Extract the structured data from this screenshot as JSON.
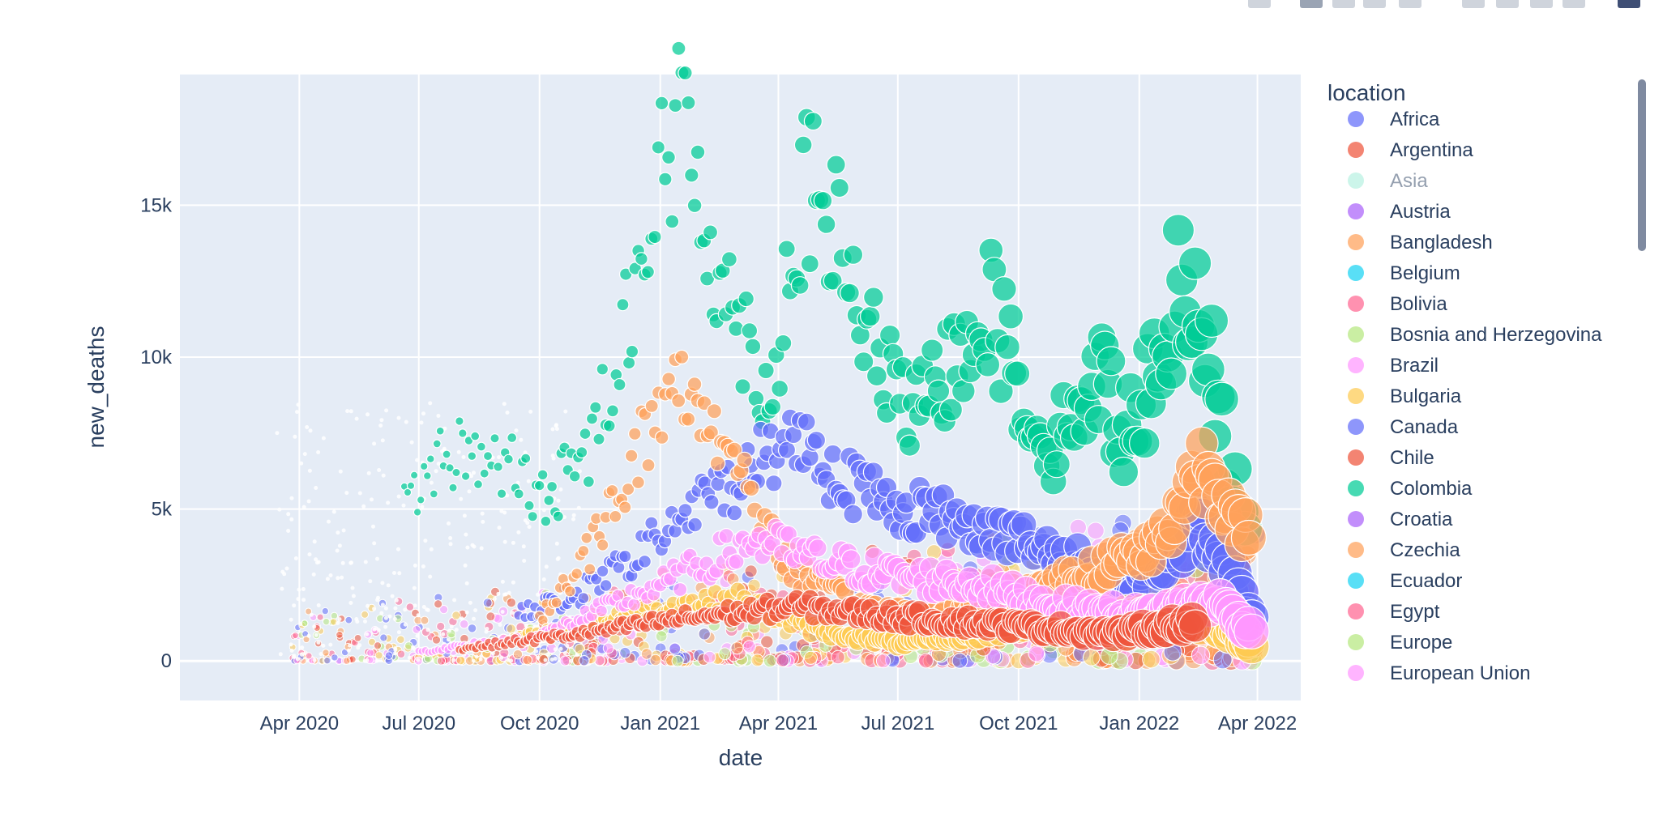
{
  "modebar": {
    "buttons": [
      "camera-icon",
      "zoom-icon",
      "pan-icon",
      "box-select-icon",
      "lasso-select-icon",
      "zoom-in-icon",
      "zoom-out-icon",
      "autoscale-icon",
      "reset-axes-icon",
      "plotly-logo-icon"
    ]
  },
  "chart_data": {
    "type": "scatter",
    "xlabel": "date",
    "ylabel": "new_deaths",
    "legend_title": "location",
    "x_ticks": [
      "Apr 2020",
      "Jul 2020",
      "Oct 2020",
      "Jan 2021",
      "Apr 2021",
      "Jul 2021",
      "Oct 2021",
      "Jan 2022",
      "Apr 2022"
    ],
    "y_ticks": [
      "0",
      "5k",
      "10k",
      "15k"
    ],
    "xlim": [
      "2020-01-01",
      "2022-05-04"
    ],
    "ylim": [
      -1300,
      19300
    ],
    "grid": true,
    "legend_placement": "right",
    "background": "#e5ecf6",
    "series": [
      {
        "name": "Africa",
        "color": "#636efa"
      },
      {
        "name": "Argentina",
        "color": "#EF553B"
      },
      {
        "name": "Asia",
        "color": "#00cc96",
        "hidden": true
      },
      {
        "name": "Austria",
        "color": "#ab63fa"
      },
      {
        "name": "Bangladesh",
        "color": "#FFA15A"
      },
      {
        "name": "Belgium",
        "color": "#19d3f3"
      },
      {
        "name": "Bolivia",
        "color": "#FF6692"
      },
      {
        "name": "Bosnia and Herzegovina",
        "color": "#B6E880"
      },
      {
        "name": "Brazil",
        "color": "#FF97FF"
      },
      {
        "name": "Bulgaria",
        "color": "#FECB52"
      },
      {
        "name": "Canada",
        "color": "#636efa"
      },
      {
        "name": "Chile",
        "color": "#EF553B"
      },
      {
        "name": "Colombia",
        "color": "#00cc96"
      },
      {
        "name": "Croatia",
        "color": "#ab63fa"
      },
      {
        "name": "Czechia",
        "color": "#FFA15A"
      },
      {
        "name": "Ecuador",
        "color": "#19d3f3"
      },
      {
        "name": "Egypt",
        "color": "#FF6692"
      },
      {
        "name": "Europe",
        "color": "#B6E880"
      },
      {
        "name": "European Union",
        "color": "#FF97FF"
      }
    ],
    "highlight_series": [
      {
        "name": "Colombia",
        "color": "#00cc96",
        "points": [
          [
            "2020-06-20",
            5400
          ],
          [
            "2020-07-10",
            6300
          ],
          [
            "2020-08-01",
            7000
          ],
          [
            "2020-08-20",
            6700
          ],
          [
            "2020-09-10",
            6300
          ],
          [
            "2020-10-01",
            5200
          ],
          [
            "2020-10-20",
            6000
          ],
          [
            "2020-11-10",
            7200
          ],
          [
            "2020-12-01",
            10500
          ],
          [
            "2020-12-20",
            14000
          ],
          [
            "2021-01-10",
            16800
          ],
          [
            "2021-01-20",
            18100
          ],
          [
            "2021-02-01",
            15200
          ],
          [
            "2021-02-20",
            12000
          ],
          [
            "2021-03-10",
            10500
          ],
          [
            "2021-03-25",
            8500
          ],
          [
            "2021-04-10",
            12800
          ],
          [
            "2021-04-20",
            15400
          ],
          [
            "2021-05-05",
            14800
          ],
          [
            "2021-05-20",
            13500
          ],
          [
            "2021-06-05",
            11000
          ],
          [
            "2021-06-25",
            9200
          ],
          [
            "2021-07-15",
            8000
          ],
          [
            "2021-08-01",
            9000
          ],
          [
            "2021-08-20",
            10500
          ],
          [
            "2021-09-05",
            12000
          ],
          [
            "2021-09-25",
            10000
          ],
          [
            "2021-10-10",
            8000
          ],
          [
            "2021-10-30",
            7000
          ],
          [
            "2021-11-15",
            8500
          ],
          [
            "2021-12-01",
            9500
          ],
          [
            "2021-12-20",
            7500
          ],
          [
            "2022-01-05",
            8500
          ],
          [
            "2022-01-20",
            10500
          ],
          [
            "2022-02-05",
            13000
          ],
          [
            "2022-02-20",
            11000
          ],
          [
            "2022-03-10",
            6000
          ],
          [
            "2022-03-25",
            4500
          ]
        ]
      },
      {
        "name": "Canada",
        "color": "#636efa",
        "points": [
          [
            "2020-09-15",
            1500
          ],
          [
            "2020-11-01",
            2200
          ],
          [
            "2020-12-15",
            3500
          ],
          [
            "2021-01-20",
            4800
          ],
          [
            "2021-03-01",
            6000
          ],
          [
            "2021-04-15",
            7500
          ],
          [
            "2021-05-15",
            6200
          ],
          [
            "2021-06-15",
            5300
          ],
          [
            "2021-07-15",
            5000
          ],
          [
            "2021-08-15",
            4600
          ],
          [
            "2021-09-15",
            4400
          ],
          [
            "2021-10-15",
            3600
          ],
          [
            "2021-11-15",
            3200
          ],
          [
            "2021-12-15",
            2500
          ],
          [
            "2022-01-15",
            3000
          ],
          [
            "2022-02-15",
            4500
          ],
          [
            "2022-03-15",
            2500
          ],
          [
            "2022-03-30",
            1100
          ]
        ]
      },
      {
        "name": "Czechia",
        "color": "#FFA15A",
        "points": [
          [
            "2020-10-01",
            1500
          ],
          [
            "2020-11-01",
            3000
          ],
          [
            "2020-12-10",
            6500
          ],
          [
            "2021-01-10",
            9000
          ],
          [
            "2021-02-01",
            8500
          ],
          [
            "2021-03-01",
            6500
          ],
          [
            "2021-04-01",
            3500
          ],
          [
            "2021-05-01",
            2500
          ],
          [
            "2021-06-01",
            1800
          ],
          [
            "2021-08-01",
            1400
          ],
          [
            "2021-10-01",
            2200
          ],
          [
            "2021-12-01",
            3000
          ],
          [
            "2022-01-20",
            4000
          ],
          [
            "2022-02-15",
            6500
          ],
          [
            "2022-03-10",
            5500
          ],
          [
            "2022-03-28",
            3800
          ]
        ]
      },
      {
        "name": "Bulgaria",
        "color": "#FECB52",
        "points": [
          [
            "2020-09-01",
            600
          ],
          [
            "2020-11-01",
            1200
          ],
          [
            "2021-01-01",
            1800
          ],
          [
            "2021-03-01",
            2000
          ],
          [
            "2021-05-01",
            1000
          ],
          [
            "2021-07-01",
            600
          ],
          [
            "2021-09-01",
            900
          ],
          [
            "2021-11-01",
            1500
          ],
          [
            "2022-01-01",
            1600
          ],
          [
            "2022-03-01",
            1200
          ],
          [
            "2022-03-30",
            500
          ]
        ]
      },
      {
        "name": "Brazil",
        "color": "#FF97FF",
        "points": [
          [
            "2020-07-01",
            300
          ],
          [
            "2020-10-01",
            800
          ],
          [
            "2021-01-01",
            2500
          ],
          [
            "2021-03-15",
            4000
          ],
          [
            "2021-05-01",
            3300
          ],
          [
            "2021-07-01",
            2800
          ],
          [
            "2021-09-01",
            2500
          ],
          [
            "2021-11-01",
            1800
          ],
          [
            "2022-01-01",
            1500
          ],
          [
            "2022-03-01",
            2000
          ],
          [
            "2022-03-30",
            900
          ]
        ]
      },
      {
        "name": "Chile",
        "color": "#EF553B",
        "points": [
          [
            "2020-08-01",
            400
          ],
          [
            "2020-11-01",
            900
          ],
          [
            "2021-01-15",
            1400
          ],
          [
            "2021-04-15",
            1800
          ],
          [
            "2021-06-15",
            1500
          ],
          [
            "2021-09-15",
            1200
          ],
          [
            "2021-12-15",
            900
          ],
          [
            "2022-02-15",
            1300
          ]
        ]
      }
    ]
  }
}
